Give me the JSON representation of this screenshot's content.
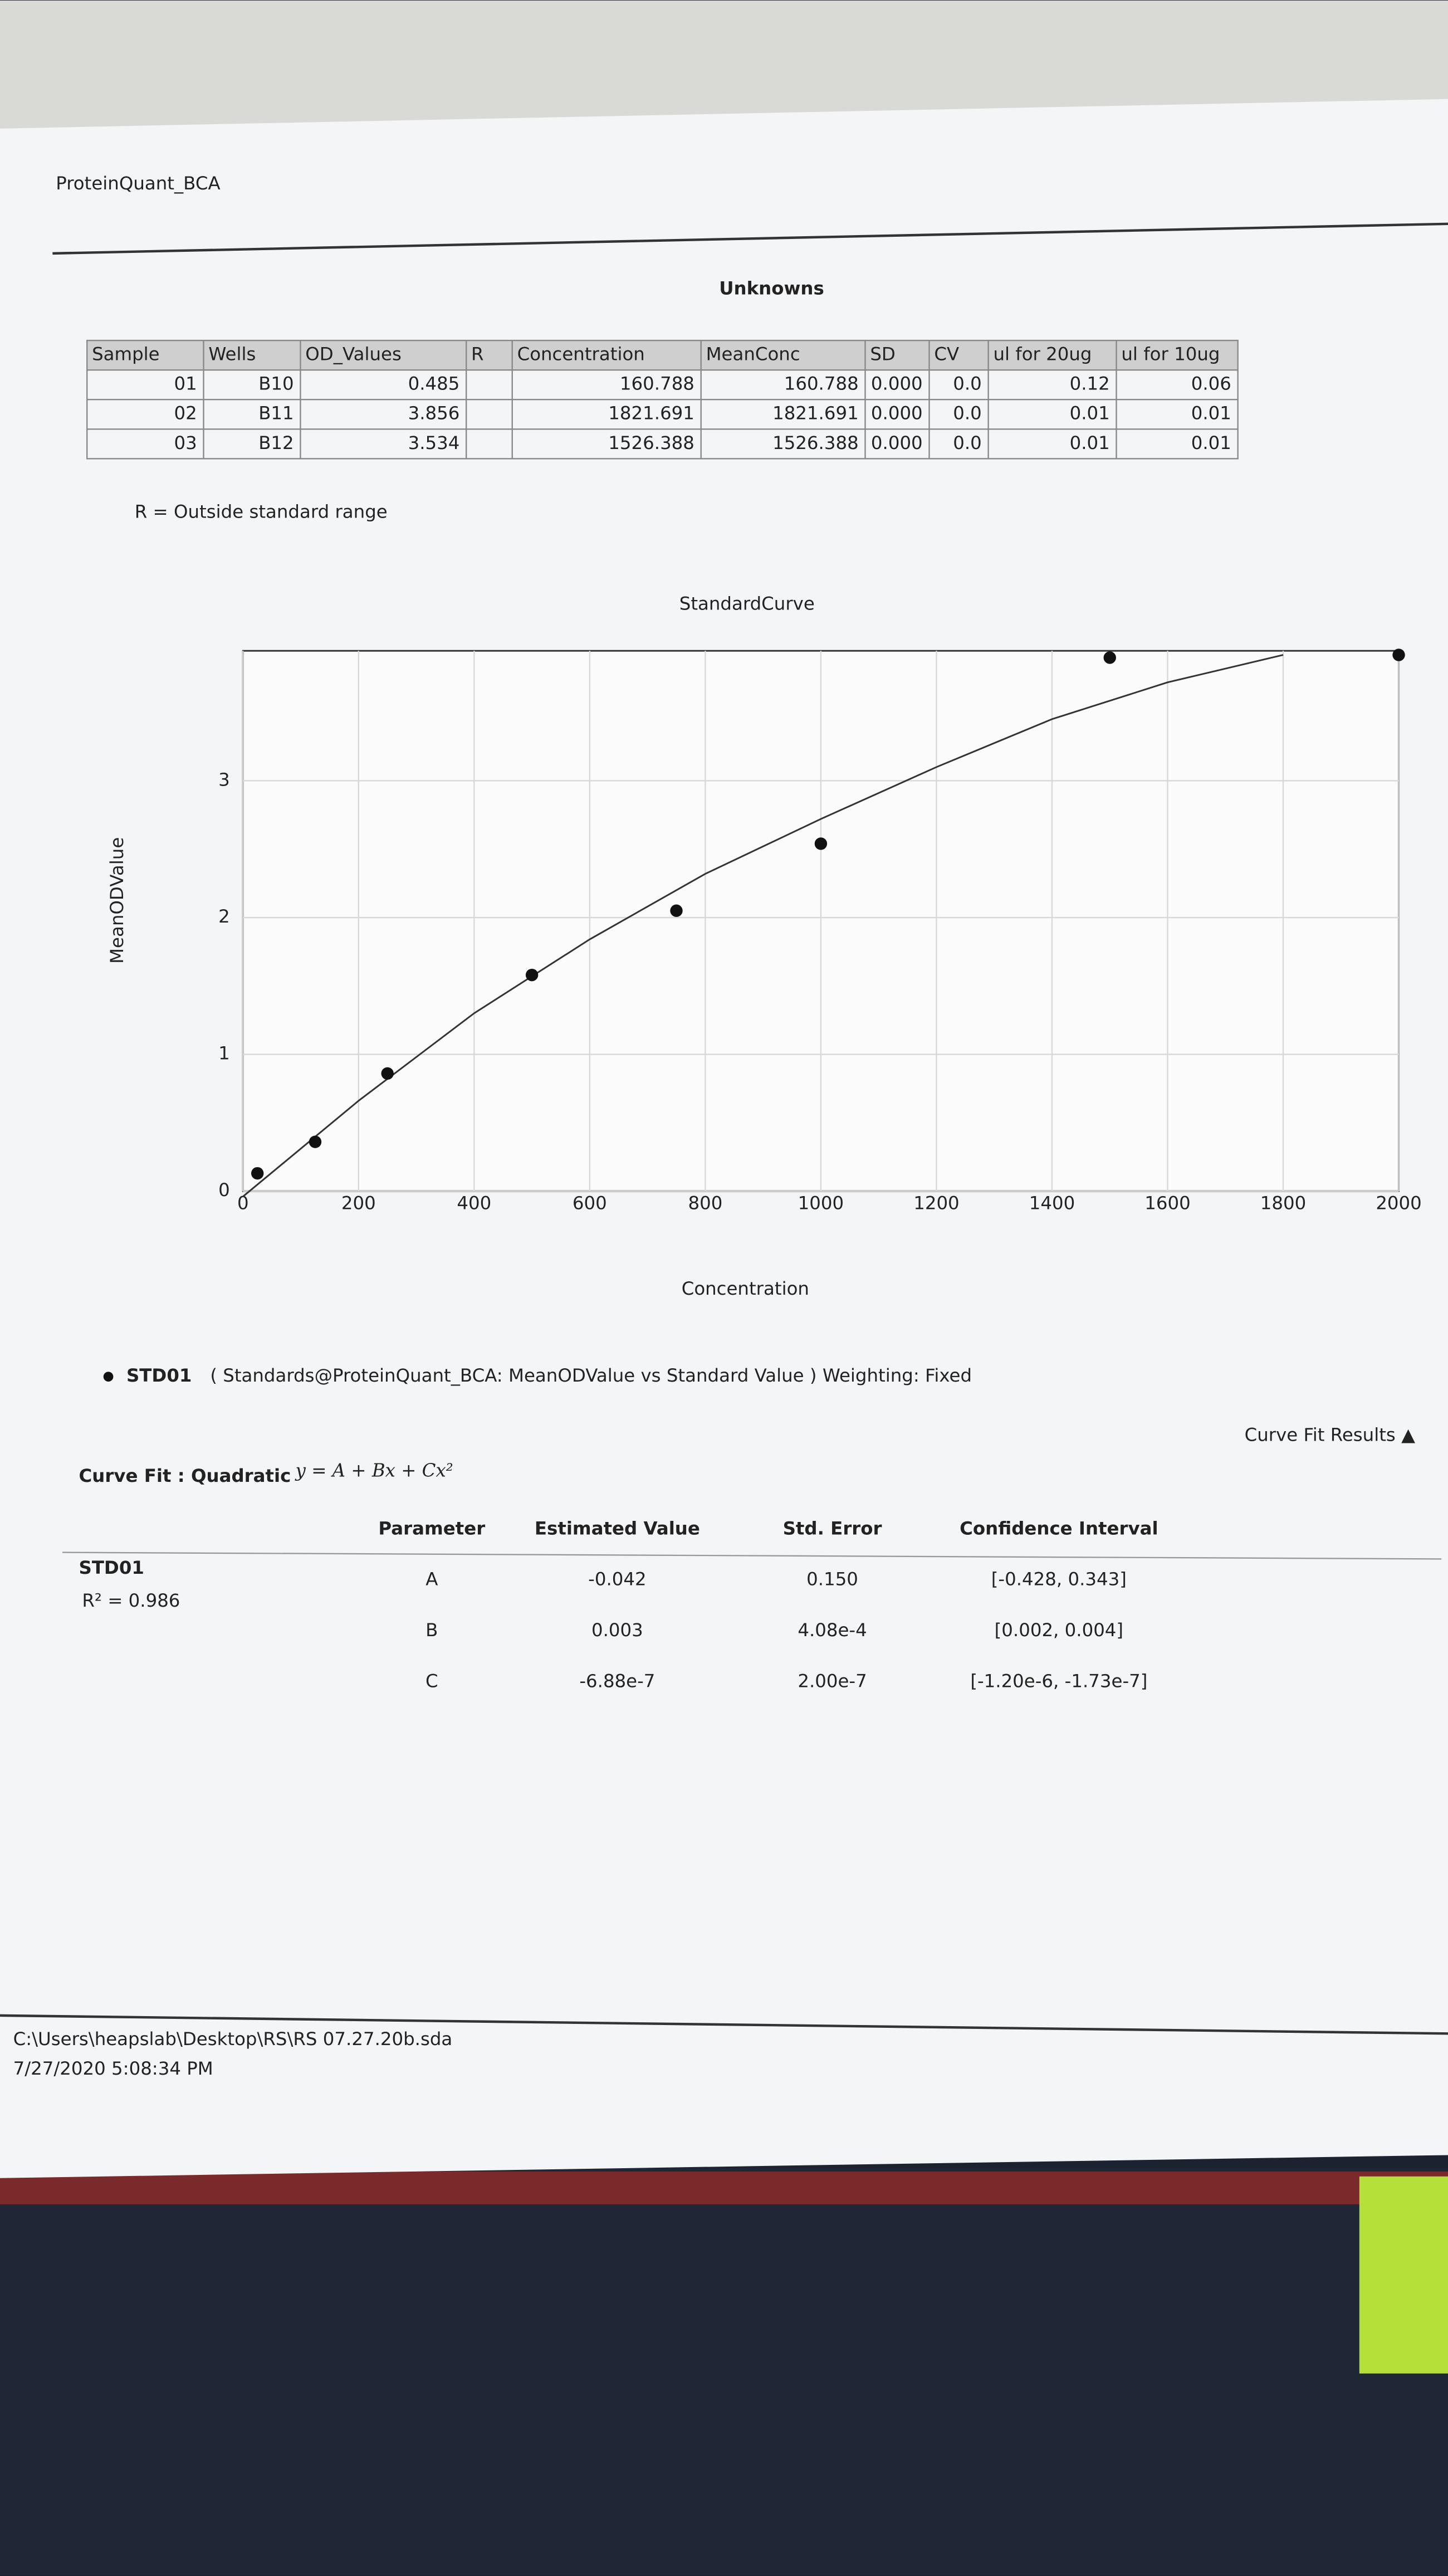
{
  "header": {
    "title": "ProteinQuant_BCA"
  },
  "unknowns": {
    "title": "Unknowns",
    "columns": [
      "Sample",
      "Wells",
      "OD_Values",
      "R",
      "Concentration",
      "MeanConc",
      "SD",
      "CV",
      "ul for 20ug",
      "ul for 10ug"
    ],
    "rows": [
      [
        "01",
        "B10",
        "0.485",
        null,
        "160.788",
        "160.788",
        "0.000",
        "0.0",
        "0.12",
        "0.06"
      ],
      [
        "02",
        "B11",
        "3.856",
        null,
        "1821.691",
        "1821.691",
        "0.000",
        "0.0",
        "0.01",
        "0.01"
      ],
      [
        "03",
        "B12",
        "3.534",
        null,
        "1526.388",
        "1526.388",
        "0.000",
        "0.0",
        "0.01",
        "0.01"
      ]
    ],
    "note": "R = Outside standard range"
  },
  "chart_data": {
    "type": "scatter",
    "title": "StandardCurve",
    "x_label": "Concentration",
    "y_label": "MeanODValue",
    "series": [
      {
        "name": "STD01",
        "color": "#111111",
        "x": [
          25,
          125,
          250,
          500,
          750,
          1000,
          1500,
          2000
        ],
        "values": [
          0.13,
          0.36,
          0.86,
          1.58,
          2.05,
          2.54,
          3.9,
          3.92
        ]
      }
    ],
    "fit_curve": {
      "color": "#333333",
      "x": [
        0,
        200,
        400,
        600,
        800,
        1000,
        1200,
        1400,
        1600,
        1800
      ],
      "values": [
        -0.04,
        0.66,
        1.3,
        1.84,
        2.32,
        2.72,
        3.1,
        3.45,
        3.72,
        3.92
      ]
    },
    "legend_description": "( Standards@ProteinQuant_BCA: MeanODValue vs Standard Value )  Weighting: Fixed",
    "xlim": [
      0,
      2000
    ],
    "xticks": [
      0,
      200,
      400,
      600,
      800,
      1000,
      1200,
      1400,
      1600,
      1800,
      2000
    ],
    "ylim": [
      0,
      3.95
    ],
    "yticks": [
      0,
      1,
      2,
      3
    ],
    "grid": true
  },
  "curve_fit": {
    "toggle": "Curve Fit Results ▲",
    "label": "Curve Fit : Quadratic",
    "equation": "y = A + Bx + Cx²",
    "columns": [
      "Parameter",
      "Estimated Value",
      "Std. Error",
      "Confidence Interval"
    ],
    "group": "STD01",
    "r_squared": "R² = 0.986",
    "rows": [
      [
        "A",
        "-0.042",
        "0.150",
        "[-0.428, 0.343]"
      ],
      [
        "B",
        "0.003",
        "4.08e-4",
        "[0.002, 0.004]"
      ],
      [
        "C",
        "-6.88e-7",
        "2.00e-7",
        "[-1.20e-6, -1.73e-7]"
      ]
    ]
  },
  "footer": {
    "path": "C:\\Users\\heapslab\\Desktop\\RS\\RS 07.27.20b.sda",
    "timestamp": "7/27/2020 5:08:34 PM"
  }
}
